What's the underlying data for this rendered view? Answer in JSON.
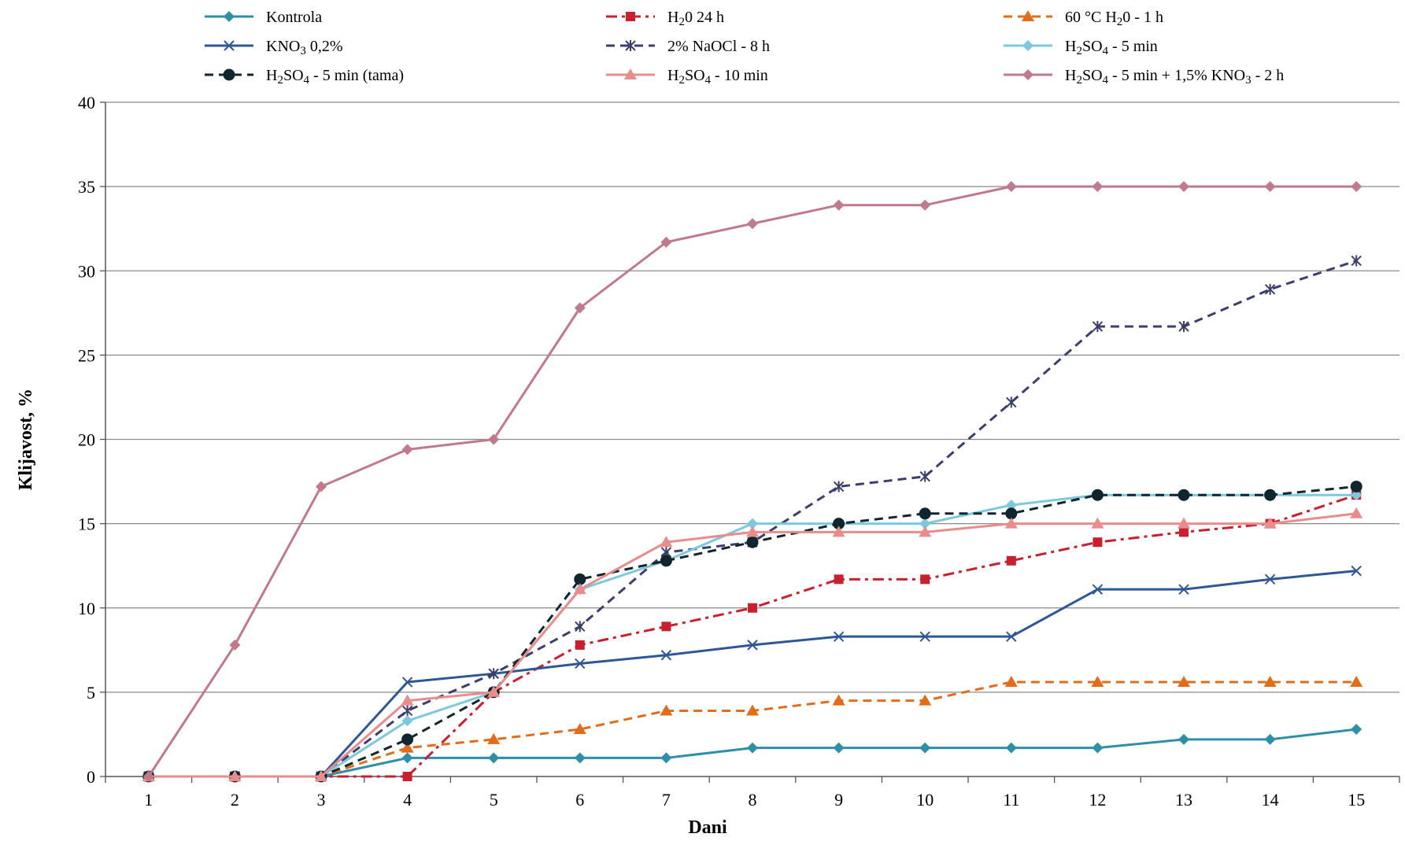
{
  "chart_data": {
    "type": "line",
    "title": "",
    "xlabel": "Dani",
    "ylabel": "Klijavost, %",
    "x": [
      1,
      2,
      3,
      4,
      5,
      6,
      7,
      8,
      9,
      10,
      11,
      12,
      13,
      14,
      15
    ],
    "xticks": [
      "1",
      "2",
      "3",
      "4",
      "5",
      "6",
      "7",
      "8",
      "9",
      "10",
      "11",
      "12",
      "13",
      "14",
      "15"
    ],
    "ylim": [
      0,
      40
    ],
    "yticks": [
      "0",
      "5",
      "10",
      "15",
      "20",
      "25",
      "30",
      "35",
      "40"
    ],
    "ytick_values": [
      0,
      5,
      10,
      15,
      20,
      25,
      30,
      35,
      40
    ],
    "grid": "horizontal",
    "legend_position": "top",
    "series": [
      {
        "key": "kontrola",
        "name": "Kontrola",
        "color": "#2e8fa8",
        "dash": "solid",
        "marker": "diamond",
        "values": [
          0,
          0,
          0,
          1.1,
          1.1,
          1.1,
          1.1,
          1.7,
          1.7,
          1.7,
          1.7,
          1.7,
          2.2,
          2.2,
          2.8
        ]
      },
      {
        "key": "h2o-24h",
        "name_parts": [
          {
            "t": "H"
          },
          {
            "t": "2",
            "sub": true
          },
          {
            "t": "0 24 h"
          }
        ],
        "color": "#c8202f",
        "dash": "dashdot",
        "marker": "square",
        "values": [
          0,
          0,
          0,
          0,
          5.0,
          7.8,
          8.9,
          10.0,
          11.7,
          11.7,
          12.8,
          13.9,
          14.5,
          15.0,
          16.7
        ]
      },
      {
        "key": "60c-h2o",
        "name_parts": [
          {
            "t": "60 °C H"
          },
          {
            "t": "2",
            "sub": true
          },
          {
            "t": "0 - 1 h"
          }
        ],
        "color": "#e06c1c",
        "dash": "dash",
        "marker": "triangle",
        "values": [
          0,
          0,
          0,
          1.7,
          2.2,
          2.8,
          3.9,
          3.9,
          4.5,
          4.5,
          5.6,
          5.6,
          5.6,
          5.6,
          5.6
        ]
      },
      {
        "key": "kno3",
        "name_parts": [
          {
            "t": "KNO"
          },
          {
            "t": "3",
            "sub": true
          },
          {
            "t": " 0,2%"
          }
        ],
        "color": "#2e5795",
        "dash": "solid",
        "marker": "x",
        "values": [
          0,
          0,
          0,
          5.6,
          6.1,
          6.7,
          7.2,
          7.8,
          8.3,
          8.3,
          8.3,
          11.1,
          11.1,
          11.7,
          12.2
        ]
      },
      {
        "key": "naocl",
        "name": "2% NaOCl - 8 h",
        "color": "#3b3f6b",
        "dash": "dash",
        "marker": "asterisk",
        "values": [
          0,
          0,
          0,
          3.9,
          6.1,
          8.9,
          13.3,
          13.9,
          17.2,
          17.8,
          22.2,
          26.7,
          26.7,
          28.9,
          30.6
        ]
      },
      {
        "key": "h2so4-5",
        "name_parts": [
          {
            "t": "H"
          },
          {
            "t": "2",
            "sub": true
          },
          {
            "t": "SO"
          },
          {
            "t": "4",
            "sub": true
          },
          {
            "t": " - 5 min"
          }
        ],
        "color": "#7cc8dc",
        "dash": "solid",
        "marker": "diamond",
        "values": [
          0,
          0,
          0,
          3.3,
          5.0,
          11.1,
          12.8,
          15.0,
          15.0,
          15.0,
          16.1,
          16.7,
          16.7,
          16.7,
          16.7
        ]
      },
      {
        "key": "h2so4-5-tama",
        "name_parts": [
          {
            "t": "H"
          },
          {
            "t": "2",
            "sub": true
          },
          {
            "t": "SO"
          },
          {
            "t": "4",
            "sub": true
          },
          {
            "t": " - 5 min (tama)"
          }
        ],
        "color": "#10262e",
        "dash": "dash",
        "marker": "circle",
        "values": [
          0,
          0,
          0,
          2.2,
          5.0,
          11.7,
          12.8,
          13.9,
          15.0,
          15.6,
          15.6,
          16.7,
          16.7,
          16.7,
          17.2
        ]
      },
      {
        "key": "h2so4-10",
        "name_parts": [
          {
            "t": "H"
          },
          {
            "t": "2",
            "sub": true
          },
          {
            "t": "SO"
          },
          {
            "t": "4",
            "sub": true
          },
          {
            "t": " - 10 min"
          }
        ],
        "color": "#e88c8c",
        "dash": "solid",
        "marker": "triangle",
        "values": [
          0,
          0,
          0,
          4.5,
          5.0,
          11.1,
          13.9,
          14.5,
          14.5,
          14.5,
          15.0,
          15.0,
          15.0,
          15.0,
          15.6
        ]
      },
      {
        "key": "h2so4-kno3",
        "name_parts": [
          {
            "t": "H"
          },
          {
            "t": "2",
            "sub": true
          },
          {
            "t": "SO"
          },
          {
            "t": "4",
            "sub": true
          },
          {
            "t": " - 5 min + 1,5% KNO"
          },
          {
            "t": "3",
            "sub": true
          },
          {
            "t": " - 2 h"
          }
        ],
        "color": "#c07a8c",
        "dash": "solid",
        "marker": "diamond",
        "values": [
          0,
          7.8,
          17.2,
          19.4,
          20.0,
          27.8,
          31.7,
          32.8,
          33.9,
          33.9,
          35.0,
          35.0,
          35.0,
          35.0,
          35.0
        ]
      }
    ]
  }
}
